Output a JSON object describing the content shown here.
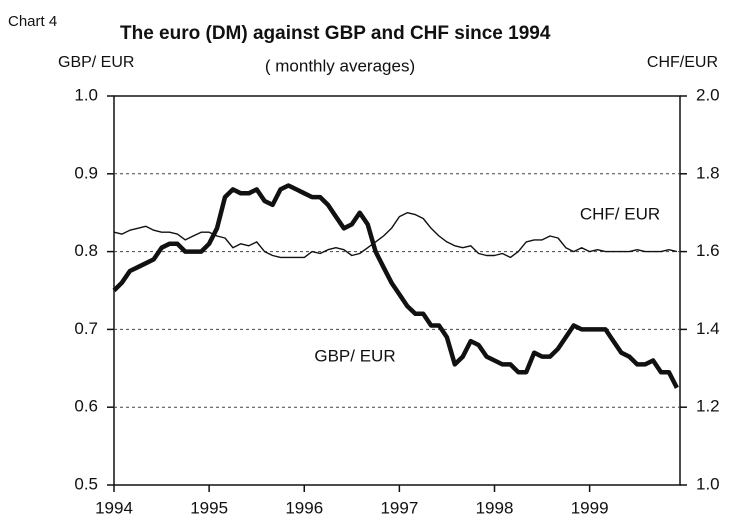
{
  "chart_data": {
    "type": "line",
    "label": "Chart 4",
    "title": "The euro (DM) against GBP and CHF since 1994",
    "subtitle": "( monthly averages)",
    "ylabel": "GBP/ EUR",
    "y2label": "CHF/EUR",
    "x": [
      1994,
      1994.083,
      1994.167,
      1994.25,
      1994.333,
      1994.417,
      1994.5,
      1994.583,
      1994.667,
      1994.75,
      1994.833,
      1994.917,
      1995,
      1995.083,
      1995.167,
      1995.25,
      1995.333,
      1995.417,
      1995.5,
      1995.583,
      1995.667,
      1995.75,
      1995.833,
      1995.917,
      1996,
      1996.083,
      1996.167,
      1996.25,
      1996.333,
      1996.417,
      1996.5,
      1996.583,
      1996.667,
      1996.75,
      1996.833,
      1996.917,
      1997,
      1997.083,
      1997.167,
      1997.25,
      1997.333,
      1997.417,
      1997.5,
      1997.583,
      1997.667,
      1997.75,
      1997.833,
      1997.917,
      1998,
      1998.083,
      1998.167,
      1998.25,
      1998.333,
      1998.417,
      1998.5,
      1998.583,
      1998.667,
      1998.75,
      1998.833,
      1998.917,
      1999,
      1999.083,
      1999.167,
      1999.25,
      1999.333,
      1999.417,
      1999.5,
      1999.583,
      1999.667,
      1999.75,
      1999.833,
      1999.917
    ],
    "series": [
      {
        "name": "GBP/ EUR",
        "color": "#111111",
        "values": [
          0.75,
          0.76,
          0.775,
          0.78,
          0.785,
          0.79,
          0.805,
          0.81,
          0.81,
          0.8,
          0.8,
          0.8,
          0.81,
          0.83,
          0.87,
          0.88,
          0.875,
          0.875,
          0.88,
          0.865,
          0.86,
          0.88,
          0.885,
          0.88,
          0.875,
          0.87,
          0.87,
          0.86,
          0.845,
          0.83,
          0.835,
          0.85,
          0.835,
          0.8,
          0.78,
          0.76,
          0.745,
          0.73,
          0.72,
          0.72,
          0.705,
          0.705,
          0.69,
          0.655,
          0.665,
          0.685,
          0.68,
          0.665,
          0.66,
          0.655,
          0.655,
          0.645,
          0.645,
          0.67,
          0.665,
          0.665,
          0.675,
          0.69,
          0.705,
          0.7,
          0.7,
          0.7,
          0.7,
          0.685,
          0.67,
          0.665,
          0.655,
          0.655,
          0.66,
          0.645,
          0.645,
          0.625
        ]
      },
      {
        "name": "CHF/ EUR",
        "color": "#111111",
        "axis": "y2",
        "values": [
          1.65,
          1.645,
          1.655,
          1.66,
          1.665,
          1.655,
          1.65,
          1.65,
          1.645,
          1.63,
          1.64,
          1.65,
          1.65,
          1.64,
          1.635,
          1.61,
          1.62,
          1.615,
          1.625,
          1.6,
          1.59,
          1.585,
          1.585,
          1.585,
          1.585,
          1.6,
          1.595,
          1.605,
          1.61,
          1.605,
          1.59,
          1.595,
          1.61,
          1.625,
          1.64,
          1.66,
          1.69,
          1.7,
          1.695,
          1.685,
          1.66,
          1.64,
          1.625,
          1.615,
          1.61,
          1.615,
          1.595,
          1.59,
          1.59,
          1.595,
          1.585,
          1.6,
          1.625,
          1.63,
          1.63,
          1.64,
          1.635,
          1.61,
          1.6,
          1.61,
          1.6,
          1.605,
          1.6,
          1.6,
          1.6,
          1.6,
          1.605,
          1.6,
          1.6,
          1.6,
          1.605,
          1.6
        ]
      }
    ],
    "xlim": [
      1994,
      1999.95
    ],
    "xticks": [
      1994,
      1995,
      1996,
      1997,
      1998,
      1999
    ],
    "ylim": [
      0.5,
      1
    ],
    "yticks": [
      0.5,
      0.6,
      0.7,
      0.8,
      0.9,
      {
        "value": 1,
        "label": "1.0"
      }
    ],
    "y2lim": [
      1,
      2
    ],
    "y2ticks": [
      {
        "value": 1,
        "label": "1.0"
      },
      1.2,
      1.4,
      1.6,
      1.8,
      {
        "value": 2,
        "label": "2.0"
      }
    ],
    "grid": true
  }
}
